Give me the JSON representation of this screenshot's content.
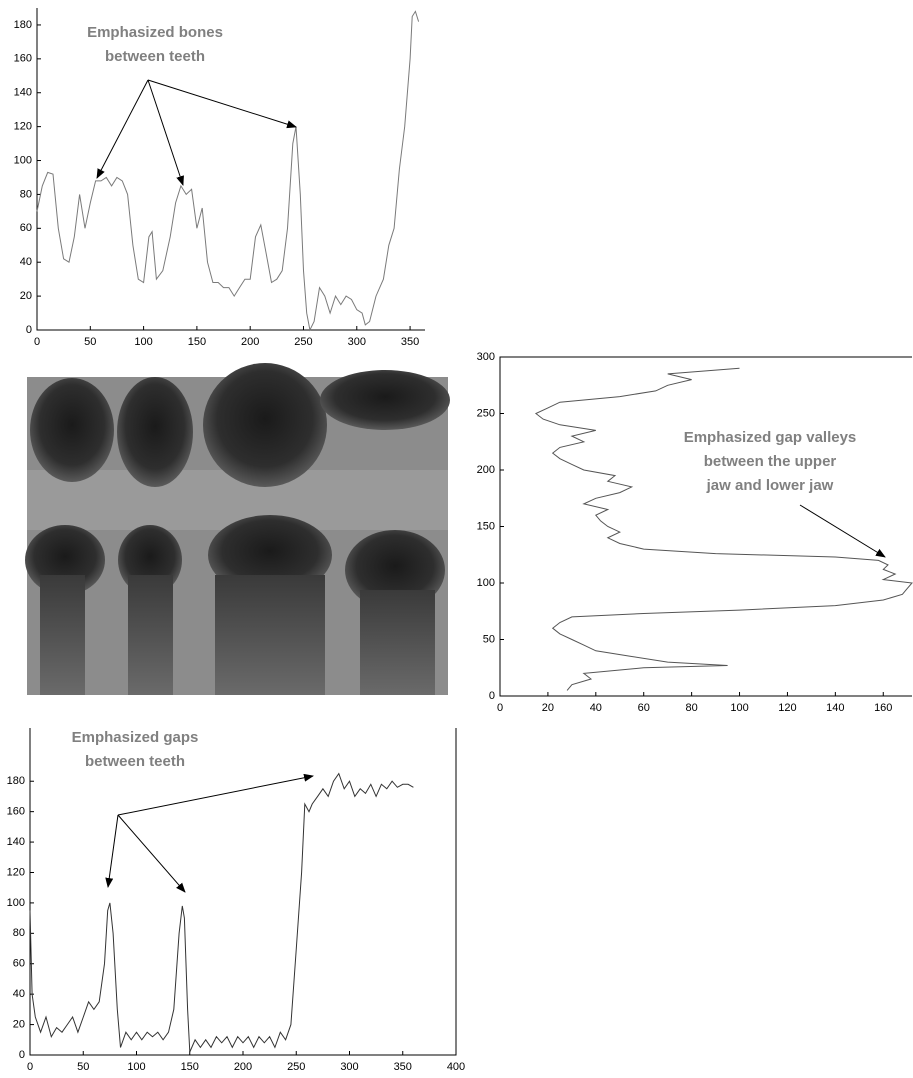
{
  "chart_data": [
    {
      "type": "line",
      "color": "#7a7a7a",
      "annotation": [
        "Emphasized bones",
        "between teeth"
      ],
      "x": [
        0,
        5,
        10,
        15,
        20,
        25,
        30,
        35,
        40,
        45,
        50,
        55,
        60,
        65,
        70,
        75,
        80,
        85,
        90,
        95,
        100,
        105,
        108,
        112,
        118,
        125,
        130,
        135,
        140,
        145,
        150,
        155,
        160,
        165,
        170,
        175,
        180,
        185,
        190,
        195,
        200,
        205,
        210,
        215,
        220,
        225,
        230,
        235,
        240,
        243,
        247,
        250,
        253,
        256,
        260,
        265,
        270,
        275,
        280,
        285,
        290,
        295,
        300,
        305,
        308,
        312,
        318,
        325,
        330,
        335,
        340,
        345,
        350,
        352,
        355,
        358
      ],
      "values": [
        70,
        85,
        93,
        92,
        60,
        42,
        40,
        55,
        80,
        60,
        75,
        88,
        88,
        90,
        85,
        90,
        88,
        80,
        50,
        30,
        28,
        55,
        58,
        30,
        35,
        55,
        75,
        85,
        80,
        83,
        60,
        72,
        40,
        28,
        28,
        25,
        25,
        20,
        25,
        30,
        30,
        55,
        62,
        45,
        28,
        30,
        35,
        60,
        110,
        120,
        80,
        35,
        10,
        0,
        5,
        25,
        20,
        10,
        20,
        15,
        20,
        18,
        12,
        10,
        3,
        5,
        20,
        30,
        50,
        60,
        95,
        120,
        160,
        185,
        188,
        182
      ],
      "xlim": [
        0,
        364
      ],
      "ylim": [
        0,
        190
      ],
      "xticks": [
        0,
        50,
        100,
        150,
        200,
        250,
        300,
        350
      ],
      "yticks": [
        0,
        20,
        40,
        60,
        80,
        100,
        120,
        140,
        160,
        180
      ]
    },
    {
      "type": "line",
      "orientation": "vertical",
      "color": "#555555",
      "annotation": [
        "Emphasized gap valleys",
        "between the upper",
        "jaw and lower jaw"
      ],
      "y": [
        5,
        10,
        15,
        20,
        25,
        27,
        30,
        35,
        40,
        45,
        50,
        55,
        60,
        65,
        70,
        73,
        76,
        80,
        85,
        90,
        95,
        100,
        103,
        108,
        112,
        116,
        120,
        123,
        126,
        130,
        135,
        140,
        145,
        150,
        155,
        160,
        165,
        170,
        175,
        180,
        185,
        190,
        195,
        200,
        205,
        210,
        215,
        220,
        225,
        230,
        235,
        240,
        245,
        250,
        255,
        260,
        265,
        270,
        275,
        280,
        285,
        290
      ],
      "values": [
        28,
        30,
        38,
        35,
        60,
        95,
        70,
        55,
        40,
        35,
        30,
        25,
        22,
        25,
        30,
        60,
        100,
        140,
        160,
        168,
        170,
        172,
        160,
        165,
        160,
        162,
        158,
        140,
        90,
        60,
        50,
        45,
        50,
        45,
        42,
        40,
        45,
        35,
        40,
        50,
        55,
        45,
        48,
        35,
        30,
        25,
        22,
        25,
        35,
        30,
        40,
        25,
        18,
        15,
        20,
        25,
        50,
        65,
        70,
        80,
        70,
        100
      ],
      "xlim": [
        0,
        172
      ],
      "ylim": [
        0,
        300
      ],
      "xticks": [
        0,
        20,
        40,
        60,
        80,
        100,
        120,
        140,
        160
      ],
      "yticks": [
        0,
        50,
        100,
        150,
        200,
        250,
        300
      ]
    },
    {
      "type": "line",
      "color": "#333333",
      "annotation": [
        "Emphasized gaps",
        "between teeth"
      ],
      "x": [
        0,
        2,
        5,
        10,
        15,
        20,
        25,
        30,
        35,
        40,
        45,
        50,
        55,
        60,
        65,
        70,
        73,
        75,
        78,
        82,
        85,
        90,
        95,
        100,
        105,
        110,
        115,
        120,
        125,
        130,
        135,
        140,
        143,
        145,
        148,
        150,
        155,
        160,
        165,
        170,
        175,
        180,
        185,
        190,
        195,
        200,
        205,
        210,
        215,
        220,
        225,
        230,
        235,
        240,
        245,
        250,
        255,
        258,
        262,
        265,
        270,
        275,
        280,
        285,
        290,
        295,
        300,
        305,
        310,
        315,
        320,
        325,
        330,
        335,
        340,
        345,
        350,
        355,
        360
      ],
      "values": [
        95,
        40,
        25,
        15,
        25,
        12,
        18,
        15,
        20,
        25,
        15,
        25,
        35,
        30,
        35,
        60,
        95,
        100,
        80,
        30,
        5,
        15,
        10,
        15,
        10,
        15,
        12,
        15,
        10,
        15,
        30,
        80,
        98,
        90,
        30,
        2,
        10,
        5,
        10,
        5,
        12,
        8,
        12,
        5,
        12,
        8,
        12,
        5,
        12,
        8,
        12,
        5,
        15,
        10,
        20,
        70,
        120,
        165,
        160,
        165,
        170,
        175,
        170,
        180,
        185,
        175,
        180,
        170,
        175,
        172,
        178,
        170,
        178,
        175,
        180,
        176,
        178,
        178,
        176
      ],
      "xlim": [
        0,
        400
      ],
      "ylim": [
        0,
        215
      ],
      "xticks": [
        0,
        50,
        100,
        150,
        200,
        250,
        300,
        350,
        400
      ],
      "yticks": [
        0,
        20,
        40,
        60,
        80,
        100,
        120,
        140,
        160,
        180
      ]
    }
  ]
}
